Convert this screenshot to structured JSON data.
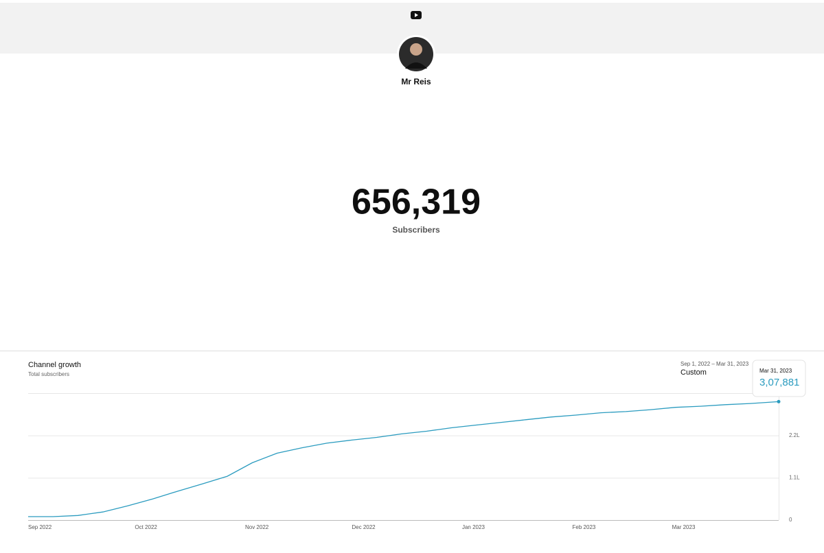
{
  "header": {
    "channel_name": "Mr Reis"
  },
  "counter": {
    "count": "656,319",
    "label": "Subscribers"
  },
  "chart_data": {
    "type": "line",
    "title": "Channel growth",
    "subtitle": "Total subscribers",
    "date_range": "Sep 1, 2022 – Mar 31, 2023",
    "period": "Custom",
    "x": [
      "2022-09-01",
      "2022-09-08",
      "2022-09-15",
      "2022-09-22",
      "2022-09-29",
      "2022-10-06",
      "2022-10-13",
      "2022-10-20",
      "2022-10-27",
      "2022-11-03",
      "2022-11-10",
      "2022-11-17",
      "2022-11-24",
      "2022-12-01",
      "2022-12-08",
      "2022-12-15",
      "2022-12-22",
      "2022-12-29",
      "2023-01-05",
      "2023-01-12",
      "2023-01-19",
      "2023-01-26",
      "2023-02-02",
      "2023-02-09",
      "2023-02-16",
      "2023-02-23",
      "2023-03-02",
      "2023-03-09",
      "2023-03-16",
      "2023-03-23",
      "2023-03-31"
    ],
    "series": [
      {
        "name": "Total subscribers",
        "color": "#2a9bbf",
        "values": [
          9000,
          9000,
          12000,
          21000,
          37000,
          55000,
          75000,
          94000,
          114000,
          149000,
          174000,
          188000,
          200000,
          208000,
          215000,
          224000,
          231000,
          240000,
          247000,
          254000,
          261000,
          268000,
          273000,
          279000,
          282000,
          287000,
          293000,
          296000,
          300000,
          303000,
          307881
        ]
      }
    ],
    "xlim": [
      "2022-09-01",
      "2023-03-31"
    ],
    "xticks": [
      {
        "value": "2022-09-01",
        "label": "Sep 2022"
      },
      {
        "value": "2022-10-01",
        "label": "Oct 2022"
      },
      {
        "value": "2022-11-01",
        "label": "Nov 2022"
      },
      {
        "value": "2022-12-01",
        "label": "Dec 2022"
      },
      {
        "value": "2023-01-01",
        "label": "Jan 2023"
      },
      {
        "value": "2023-02-01",
        "label": "Feb 2023"
      },
      {
        "value": "2023-03-01",
        "label": "Mar 2023"
      }
    ],
    "ylim": [
      0,
      330000
    ],
    "yticks": [
      0,
      {
        "value": 110000,
        "label": "1.1L"
      },
      {
        "value": 220000,
        "label": "2.2L"
      }
    ],
    "grid": true,
    "tooltip": {
      "date": "Mar 31, 2023",
      "label": "3,07,881"
    }
  }
}
